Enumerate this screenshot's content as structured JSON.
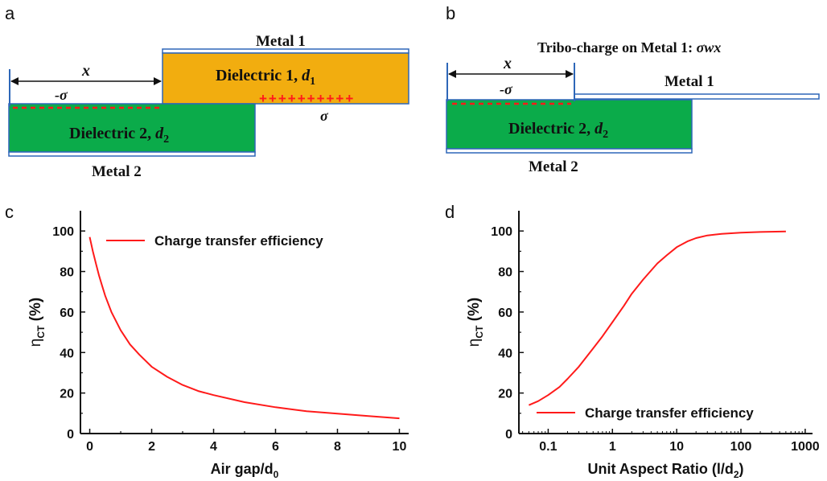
{
  "panels": {
    "a": {
      "label": "a",
      "metal1": "Metal 1",
      "metal2": "Metal 2",
      "dielectric1": "Dielectric 1, ",
      "d1": "d",
      "d1_sub": "1",
      "dielectric2": "Dielectric 2, ",
      "d2": "d",
      "d2_sub": "2",
      "x": "x",
      "neg_sigma": "-σ",
      "sigma": "σ",
      "plus_row": "++++++++++"
    },
    "b": {
      "label": "b",
      "tribo": "Tribo-charge on Metal 1: ",
      "tribo_expr": "σwx",
      "metal1": "Metal 1",
      "metal2": "Metal 2",
      "dielectric2": "Dielectric 2, ",
      "d2": "d",
      "d2_sub": "2",
      "x": "x",
      "neg_sigma": "-σ"
    },
    "c": {
      "label": "c"
    },
    "d": {
      "label": "d"
    }
  },
  "colors": {
    "dielectric1": "#f2ad0f",
    "dielectric2": "#0bab4a",
    "metal_edge": "#2e67b8",
    "curve": "#ff1a1a",
    "charge": "#ff1a1a"
  },
  "chart_data": [
    {
      "type": "line",
      "panel": "c",
      "xlabel": "Air gap/d",
      "xlabel_sub": "0",
      "ylabel": "η",
      "ylabel_sub": "CT",
      "ylabel_unit": " (%)",
      "xlim": [
        -0.3,
        10.3
      ],
      "ylim": [
        0,
        110
      ],
      "xticks": [
        0,
        2,
        4,
        6,
        8,
        10
      ],
      "yticks": [
        0,
        20,
        40,
        60,
        80,
        100
      ],
      "legend": "top-right",
      "series": [
        {
          "name": "Charge transfer efficiency",
          "x": [
            0,
            0.1,
            0.2,
            0.3,
            0.4,
            0.5,
            0.7,
            1.0,
            1.3,
            1.6,
            2.0,
            2.5,
            3.0,
            3.5,
            4.0,
            5.0,
            6.0,
            7.0,
            8.0,
            9.0,
            10.0
          ],
          "y": [
            97,
            90,
            84,
            78,
            73,
            68,
            60,
            51,
            44,
            39,
            33,
            28,
            24,
            21,
            19,
            15.5,
            13,
            11,
            9.8,
            8.6,
            7.5
          ]
        }
      ]
    },
    {
      "type": "line",
      "panel": "d",
      "xscale": "log",
      "xlabel": "Unit Aspect Ratio (l/d",
      "xlabel_sub": "2",
      "xlabel_end": ")",
      "ylabel": "η",
      "ylabel_sub": "CT",
      "ylabel_unit": " (%)",
      "xlim": [
        0.035,
        1300
      ],
      "ylim": [
        0,
        110
      ],
      "xticks": [
        0.1,
        1,
        10,
        100,
        1000
      ],
      "xtick_labels": [
        "0.1",
        "1",
        "10",
        "100",
        "1000"
      ],
      "yticks": [
        0,
        20,
        40,
        60,
        80,
        100
      ],
      "legend": "bottom-right",
      "series": [
        {
          "name": "Charge transfer efficiency",
          "x": [
            0.05,
            0.07,
            0.1,
            0.15,
            0.2,
            0.3,
            0.5,
            0.7,
            1,
            1.5,
            2,
            3,
            5,
            7,
            10,
            15,
            20,
            30,
            50,
            100,
            200,
            500
          ],
          "y": [
            14,
            16,
            19,
            23,
            27,
            33,
            42,
            48,
            55,
            63,
            69,
            76,
            84,
            88,
            92,
            95,
            96.5,
            97.8,
            98.6,
            99.2,
            99.5,
            99.8
          ]
        }
      ]
    }
  ]
}
